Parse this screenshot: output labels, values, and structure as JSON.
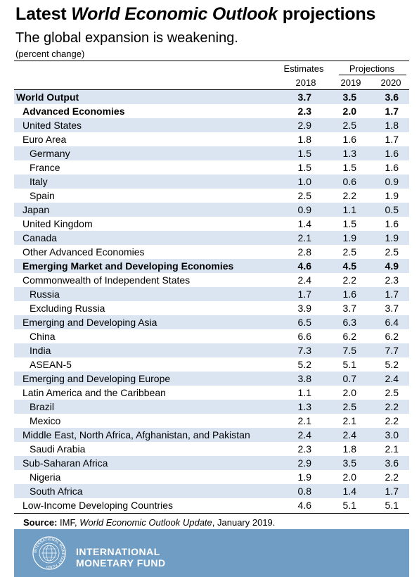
{
  "header": {
    "title_prefix": "Latest ",
    "title_italic": "World Economic Outlook",
    "title_suffix": " projections",
    "subtitle": "The global expansion is weakening.",
    "unit": "(percent change)"
  },
  "columns": {
    "estimates_label": "Estimates",
    "projections_label": "Projections",
    "years": [
      "2018",
      "2019",
      "2020"
    ]
  },
  "rows": [
    {
      "label": "World Output",
      "level": 0,
      "bold": true,
      "shaded": true,
      "values": [
        "3.7",
        "3.5",
        "3.6"
      ]
    },
    {
      "label": "Advanced Economies",
      "level": 1,
      "bold": true,
      "shaded": false,
      "values": [
        "2.3",
        "2.0",
        "1.7"
      ]
    },
    {
      "label": "United States",
      "level": 1,
      "bold": false,
      "shaded": true,
      "values": [
        "2.9",
        "2.5",
        "1.8"
      ]
    },
    {
      "label": "Euro Area",
      "level": 1,
      "bold": false,
      "shaded": false,
      "values": [
        "1.8",
        "1.6",
        "1.7"
      ]
    },
    {
      "label": "Germany",
      "level": 2,
      "bold": false,
      "shaded": true,
      "values": [
        "1.5",
        "1.3",
        "1.6"
      ]
    },
    {
      "label": "France",
      "level": 2,
      "bold": false,
      "shaded": false,
      "values": [
        "1.5",
        "1.5",
        "1.6"
      ]
    },
    {
      "label": "Italy",
      "level": 2,
      "bold": false,
      "shaded": true,
      "values": [
        "1.0",
        "0.6",
        "0.9"
      ]
    },
    {
      "label": "Spain",
      "level": 2,
      "bold": false,
      "shaded": false,
      "values": [
        "2.5",
        "2.2",
        "1.9"
      ]
    },
    {
      "label": "Japan",
      "level": 1,
      "bold": false,
      "shaded": true,
      "values": [
        "0.9",
        "1.1",
        "0.5"
      ]
    },
    {
      "label": "United Kingdom",
      "level": 1,
      "bold": false,
      "shaded": false,
      "values": [
        "1.4",
        "1.5",
        "1.6"
      ]
    },
    {
      "label": "Canada",
      "level": 1,
      "bold": false,
      "shaded": true,
      "values": [
        "2.1",
        "1.9",
        "1.9"
      ]
    },
    {
      "label": "Other Advanced Economies",
      "level": 1,
      "bold": false,
      "shaded": false,
      "values": [
        "2.8",
        "2.5",
        "2.5"
      ]
    },
    {
      "label": "Emerging Market and Developing Economies",
      "level": 1,
      "bold": true,
      "shaded": true,
      "values": [
        "4.6",
        "4.5",
        "4.9"
      ]
    },
    {
      "label": "Commonwealth of Independent States",
      "level": 1,
      "bold": false,
      "shaded": false,
      "values": [
        "2.4",
        "2.2",
        "2.3"
      ]
    },
    {
      "label": "Russia",
      "level": 2,
      "bold": false,
      "shaded": true,
      "values": [
        "1.7",
        "1.6",
        "1.7"
      ]
    },
    {
      "label": "Excluding Russia",
      "level": 2,
      "bold": false,
      "shaded": false,
      "values": [
        "3.9",
        "3.7",
        "3.7"
      ]
    },
    {
      "label": "Emerging and Developing Asia",
      "level": 1,
      "bold": false,
      "shaded": true,
      "values": [
        "6.5",
        "6.3",
        "6.4"
      ]
    },
    {
      "label": "China",
      "level": 2,
      "bold": false,
      "shaded": false,
      "values": [
        "6.6",
        "6.2",
        "6.2"
      ]
    },
    {
      "label": "India",
      "level": 2,
      "bold": false,
      "shaded": true,
      "values": [
        "7.3",
        "7.5",
        "7.7"
      ]
    },
    {
      "label": "ASEAN-5",
      "level": 2,
      "bold": false,
      "shaded": false,
      "values": [
        "5.2",
        "5.1",
        "5.2"
      ]
    },
    {
      "label": "Emerging and Developing Europe",
      "level": 1,
      "bold": false,
      "shaded": true,
      "values": [
        "3.8",
        "0.7",
        "2.4"
      ]
    },
    {
      "label": "Latin America and the Caribbean",
      "level": 1,
      "bold": false,
      "shaded": false,
      "values": [
        "1.1",
        "2.0",
        "2.5"
      ]
    },
    {
      "label": "Brazil",
      "level": 2,
      "bold": false,
      "shaded": true,
      "values": [
        "1.3",
        "2.5",
        "2.2"
      ]
    },
    {
      "label": "Mexico",
      "level": 2,
      "bold": false,
      "shaded": false,
      "values": [
        "2.1",
        "2.1",
        "2.2"
      ]
    },
    {
      "label": "Middle East, North Africa, Afghanistan, and Pakistan",
      "level": 1,
      "bold": false,
      "shaded": true,
      "values": [
        "2.4",
        "2.4",
        "3.0"
      ]
    },
    {
      "label": "Saudi Arabia",
      "level": 2,
      "bold": false,
      "shaded": false,
      "values": [
        "2.3",
        "1.8",
        "2.1"
      ]
    },
    {
      "label": "Sub-Saharan Africa",
      "level": 1,
      "bold": false,
      "shaded": true,
      "values": [
        "2.9",
        "3.5",
        "3.6"
      ]
    },
    {
      "label": "Nigeria",
      "level": 2,
      "bold": false,
      "shaded": false,
      "values": [
        "1.9",
        "2.0",
        "2.2"
      ]
    },
    {
      "label": "South Africa",
      "level": 2,
      "bold": false,
      "shaded": true,
      "values": [
        "0.8",
        "1.4",
        "1.7"
      ]
    },
    {
      "label": "Low-Income Developing Countries",
      "level": 1,
      "bold": false,
      "shaded": false,
      "values": [
        "4.6",
        "5.1",
        "5.1"
      ]
    }
  ],
  "source": {
    "label": "Source:",
    "text_pre": " IMF, ",
    "text_italic": "World Economic Outlook Update",
    "text_post": ", January 2019."
  },
  "footer": {
    "org_line1": "INTERNATIONAL",
    "org_line2": "MONETARY FUND",
    "seal_icon": "imf-seal-icon",
    "seal_text": "INTERNATIONAL MONETARY FUND",
    "background_color": "#6f9dc3",
    "shaded_row_color": "#dbe5f1"
  }
}
